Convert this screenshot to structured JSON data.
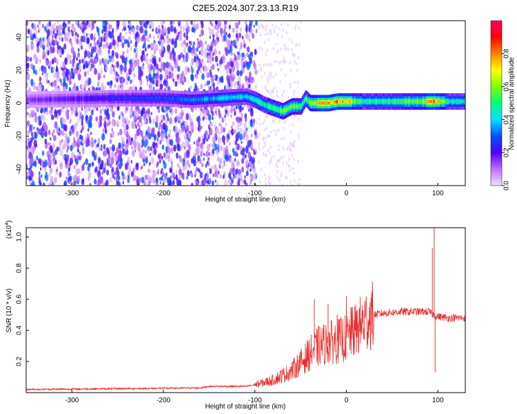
{
  "title": "C2E5.2024.307.23.13.R19",
  "chart_data": [
    {
      "type": "heatmap",
      "xlabel": "Height of straight line (km)",
      "ylabel": "Frequency (Hz)",
      "xlim": [
        -350,
        130
      ],
      "ylim": [
        -50,
        50
      ],
      "xticks": [
        -300,
        -200,
        -100,
        0,
        100
      ],
      "yticks": [
        -40,
        -20,
        0,
        20,
        40
      ],
      "colorbar": {
        "label": "Normalized spectral amplitude",
        "range": [
          0,
          1
        ],
        "ticks": [
          "0.0",
          "0.2",
          "0.4",
          "0.6",
          "0.8"
        ],
        "tick_values": [
          0,
          0.2,
          0.4,
          0.6,
          0.8
        ],
        "colors": [
          "#f0e0ff",
          "#c070ff",
          "#5000ff",
          "#0050ff",
          "#00e0ff",
          "#00ff80",
          "#80ff00",
          "#ffff00",
          "#ff8000",
          "#ff0000",
          "#ff0060"
        ]
      },
      "ridge": {
        "x": [
          -350,
          -260,
          -200,
          -170,
          -110,
          -100,
          -90,
          -80,
          -70,
          -60,
          -50,
          -45,
          -40,
          -30,
          -20,
          -10,
          0,
          20,
          50,
          80,
          95,
          110,
          130
        ],
        "y": [
          2,
          3,
          3,
          2,
          4,
          2,
          -1,
          -3,
          -5,
          -2,
          -2,
          3,
          0,
          0,
          0,
          1,
          1,
          1,
          1,
          1,
          1,
          1,
          1
        ],
        "amplitude": [
          0.15,
          0.25,
          0.3,
          0.35,
          0.45,
          0.5,
          0.5,
          0.55,
          0.6,
          0.65,
          0.55,
          0.6,
          0.6,
          0.85,
          0.85,
          0.8,
          0.75,
          0.5,
          0.5,
          0.65,
          0.85,
          0.5,
          0.45
        ]
      }
    },
    {
      "type": "line",
      "xlabel": "Height of straight line (km)",
      "ylabel": "SNR (10 * v/v)",
      "y_multiplier": "(x10",
      "y_multiplier_exp": "4",
      "y_multiplier_close": ")",
      "xlim": [
        -350,
        130
      ],
      "ylim": [
        0,
        1.06
      ],
      "xticks": [
        -300,
        -200,
        -100,
        0,
        100
      ],
      "yticks": [
        "0.2",
        "0.4",
        "0.6",
        "0.8",
        "1.0"
      ],
      "ytick_values": [
        0.2,
        0.4,
        0.6,
        0.8,
        1.0
      ],
      "color": "#e8302e",
      "envelope": {
        "x": [
          -350,
          -160,
          -150,
          -110,
          -100,
          -80,
          -60,
          -45,
          -40,
          -30,
          -20,
          -10,
          0,
          10,
          20,
          30,
          40,
          60,
          80,
          90,
          95,
          100,
          110,
          130
        ],
        "y": [
          0.02,
          0.03,
          0.04,
          0.04,
          0.05,
          0.08,
          0.14,
          0.22,
          0.25,
          0.3,
          0.32,
          0.33,
          0.35,
          0.4,
          0.46,
          0.5,
          0.51,
          0.52,
          0.52,
          0.52,
          0.5,
          0.49,
          0.48,
          0.48
        ]
      },
      "spikes": [
        {
          "x": -35,
          "y": 0.6
        },
        {
          "x": -20,
          "y": 0.57
        },
        {
          "x": -10,
          "y": 0.5
        },
        {
          "x": 0,
          "y": 0.62
        },
        {
          "x": 5,
          "y": 0.55
        },
        {
          "x": 10,
          "y": 0.47
        },
        {
          "x": 94,
          "y": 0.93
        },
        {
          "x": 96,
          "y": 1.06
        },
        {
          "x": 97,
          "y": 0.13
        }
      ]
    }
  ]
}
